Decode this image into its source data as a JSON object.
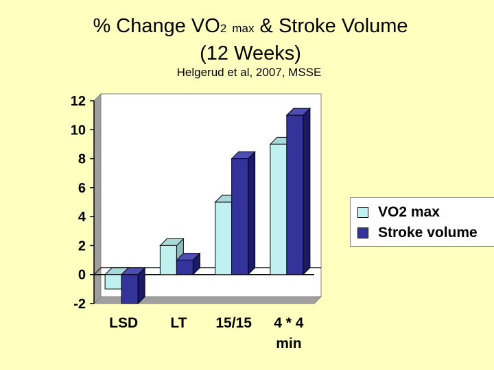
{
  "slide": {
    "title_main": "% Change VO",
    "title_sub_num": "2",
    "title_sub_max": "max",
    "title_rest": "& Stroke Volume",
    "title_line2": "(12 Weeks)",
    "citation": "Helgerud et al, 2007, MSSE"
  },
  "chart_data": {
    "type": "bar",
    "title": "% Change VO2 max & Stroke Volume (12 Weeks)",
    "categories": [
      "LSD",
      "LT",
      "15/15",
      "4 * 4 min"
    ],
    "category_lines": [
      [
        "LSD"
      ],
      [
        "LT"
      ],
      [
        "15/15"
      ],
      [
        "4 * 4",
        "min"
      ]
    ],
    "series": [
      {
        "name": "VO2 max",
        "values": [
          -1,
          2,
          5,
          9
        ],
        "color": "#c0f0f0"
      },
      {
        "name": "Stroke volume",
        "values": [
          -2,
          1,
          8,
          11
        ],
        "color": "#333399"
      }
    ],
    "ylim": [
      -2,
      12
    ],
    "yticks": [
      "-2",
      "0",
      "2",
      "4",
      "6",
      "8",
      "10",
      "12"
    ],
    "xlabel": "",
    "ylabel": "",
    "legend": "right",
    "grid": false
  }
}
